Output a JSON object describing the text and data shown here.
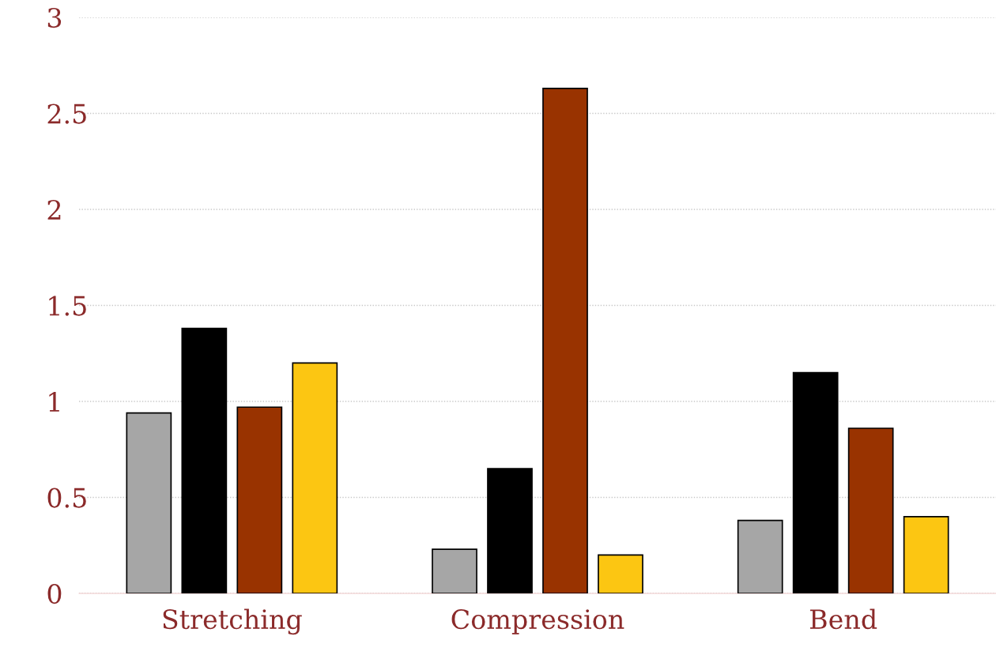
{
  "chart_data": {
    "type": "bar",
    "categories": [
      "Stretching",
      "Compression",
      "Bend"
    ],
    "series": [
      {
        "color": "#a6a6a6",
        "values": [
          0.94,
          0.23,
          0.38
        ]
      },
      {
        "color": "#000000",
        "values": [
          1.38,
          0.65,
          1.15
        ]
      },
      {
        "color": "#993300",
        "values": [
          0.97,
          2.63,
          0.86
        ]
      },
      {
        "color": "#fcc612",
        "values": [
          1.2,
          0.2,
          0.4
        ]
      }
    ],
    "ylim": [
      0,
      3
    ],
    "yticks": [
      0,
      {
        "value": 0.5,
        "label": "0.5"
      },
      1,
      {
        "value": 1.5,
        "label": "1.5"
      },
      2,
      {
        "value": 2.5,
        "label": "2.5"
      },
      3
    ],
    "grid": "y",
    "legend": false
  }
}
